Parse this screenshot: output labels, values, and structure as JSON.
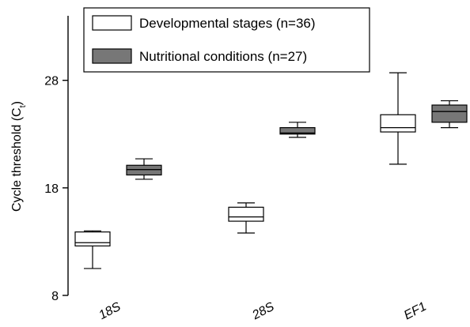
{
  "chart_data": {
    "type": "boxplot",
    "ylabel": "Cycle threshold (C",
    "ylabel_subscript": "t",
    "ylabel_suffix": ")",
    "ylim": [
      8,
      34
    ],
    "yticks": [
      "8",
      "18",
      "28"
    ],
    "categories": [
      "18S",
      "28S",
      "EF1"
    ],
    "legend": {
      "placement": "top-left",
      "entries": [
        "Developmental stages (n=36)",
        "Nutritional conditions (n=27)"
      ]
    },
    "series": [
      {
        "name": "Developmental stages (n=36)",
        "fill": "#ffffff",
        "boxes": [
          {
            "category": "18S",
            "min": 10.5,
            "q1": 12.6,
            "median": 12.9,
            "q3": 13.9,
            "max": 14.0
          },
          {
            "category": "28S",
            "min": 13.8,
            "q1": 14.9,
            "median": 15.3,
            "q3": 16.2,
            "max": 16.6
          },
          {
            "category": "EF1",
            "min": 20.2,
            "q1": 23.2,
            "median": 23.6,
            "q3": 24.8,
            "max": 28.7
          }
        ]
      },
      {
        "name": "Nutritional conditions (n=27)",
        "fill": "#777777",
        "boxes": [
          {
            "category": "18S",
            "min": 18.8,
            "q1": 19.2,
            "median": 19.7,
            "q3": 20.1,
            "max": 20.7
          },
          {
            "category": "28S",
            "min": 22.7,
            "q1": 23.0,
            "median": 23.1,
            "q3": 23.6,
            "max": 24.1
          },
          {
            "category": "EF1",
            "min": 23.6,
            "q1": 24.1,
            "median": 25.1,
            "q3": 25.7,
            "max": 26.1
          }
        ]
      }
    ]
  }
}
